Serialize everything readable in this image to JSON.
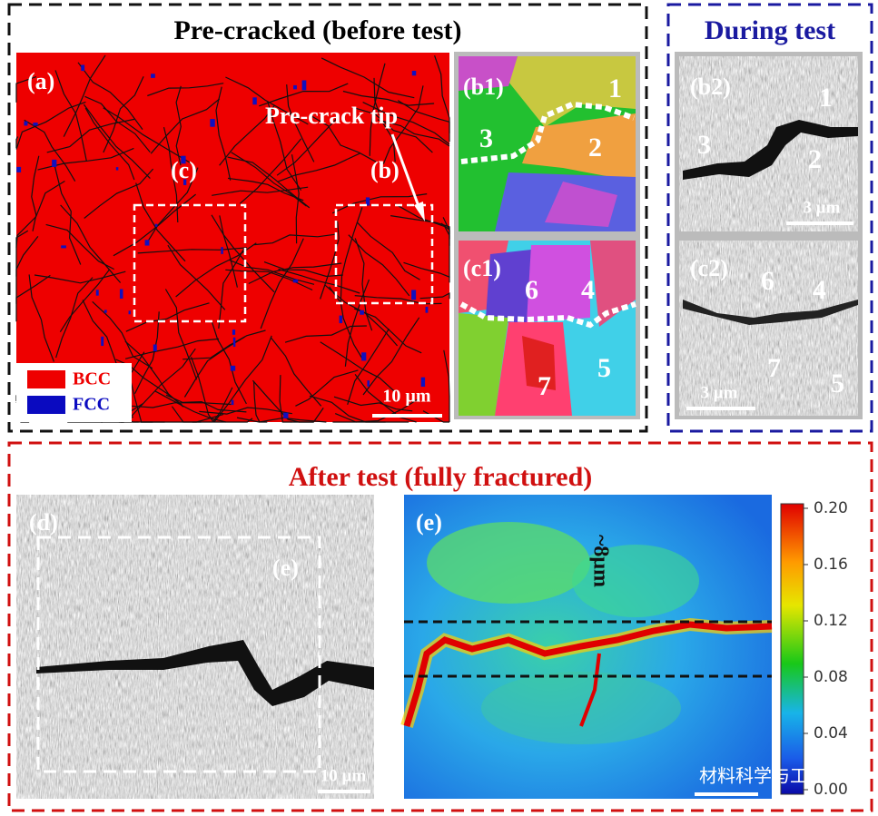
{
  "top_left": {
    "title": "Pre-cracked (before test)",
    "panel_a": {
      "label": "(a)",
      "region_c": "(c)",
      "region_b": "(b)",
      "annotation": "Pre-crack tip",
      "legend": [
        "BCC",
        "FCC"
      ],
      "scale_bar": "10 µm"
    },
    "panel_b1": {
      "label": "(b1)",
      "grains": [
        "1",
        "2",
        "3"
      ]
    },
    "panel_c1": {
      "label": "(c1)",
      "grains": [
        "6",
        "4",
        "5",
        "7"
      ]
    }
  },
  "top_right": {
    "title": "During test",
    "panel_b2": {
      "label": "(b2)",
      "grains": [
        "1",
        "3",
        "2"
      ],
      "scale_bar": "3 µm"
    },
    "panel_c2": {
      "label": "(c2)",
      "grains": [
        "6",
        "4",
        "7",
        "5"
      ],
      "scale_bar": "3 µm"
    }
  },
  "bottom": {
    "title": "After test (fully fractured)",
    "panel_d": {
      "label": "(d)",
      "region_e": "(e)",
      "scale_bar": "10 µm"
    },
    "panel_e": {
      "label": "(e)",
      "annotation": "~8μm",
      "colorbar_ticks": [
        "0.20",
        "0.16",
        "0.12",
        "0.08",
        "0.04",
        "0.00"
      ]
    }
  },
  "watermark": "材料科学与工程"
}
